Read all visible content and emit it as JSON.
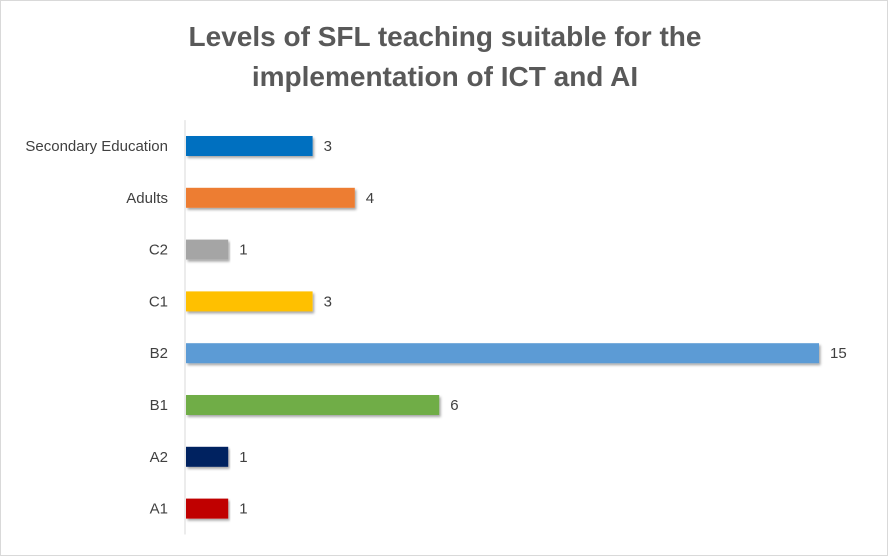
{
  "chart_data": {
    "type": "bar",
    "orientation": "horizontal",
    "title_lines": [
      "Levels of SFL teaching suitable for the",
      "implementation of ICT and AI"
    ],
    "categories": [
      "Secondary Education",
      "Adults",
      "C2",
      "C1",
      "B2",
      "B1",
      "A2",
      "A1"
    ],
    "values": [
      3,
      4,
      1,
      3,
      15,
      6,
      1,
      1
    ],
    "colors": [
      "#0070c0",
      "#ed7d31",
      "#a5a5a5",
      "#ffc000",
      "#5b9bd5",
      "#70ad47",
      "#002060",
      "#c00000"
    ],
    "xlim": [
      0,
      15
    ],
    "grid": false,
    "legend": "none",
    "data_labels": true
  }
}
